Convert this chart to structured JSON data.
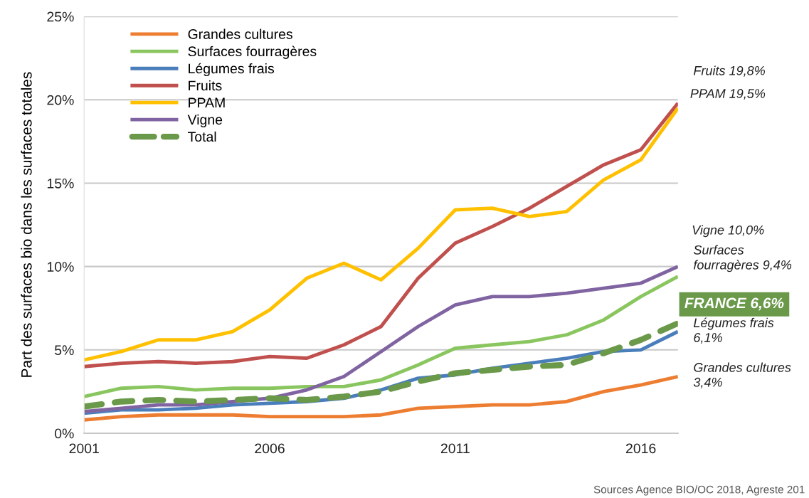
{
  "chart_data": {
    "type": "line",
    "ylabel": "Part des surfaces bio dans les surfaces totales",
    "x": [
      2001,
      2002,
      2003,
      2004,
      2005,
      2006,
      2007,
      2008,
      2009,
      2010,
      2011,
      2012,
      2013,
      2014,
      2015,
      2016,
      2017
    ],
    "xlim": [
      2001,
      2017
    ],
    "xticks": [
      2001,
      2006,
      2011,
      2016
    ],
    "ylim": [
      0,
      25
    ],
    "yticks": [
      {
        "value": 0,
        "label": "0%"
      },
      {
        "value": 5,
        "label": "5%"
      },
      {
        "value": 10,
        "label": "10%"
      },
      {
        "value": 15,
        "label": "15%"
      },
      {
        "value": 20,
        "label": "20%"
      },
      {
        "value": 25,
        "label": "25%"
      }
    ],
    "grid": "y",
    "legend": "top left",
    "marker": "none",
    "series": [
      {
        "name": "Grandes cultures",
        "color": "#ed7d31",
        "values": [
          0.8,
          1.0,
          1.1,
          1.1,
          1.1,
          1.0,
          1.0,
          1.0,
          1.1,
          1.5,
          1.6,
          1.7,
          1.7,
          1.9,
          2.5,
          2.9,
          3.4
        ]
      },
      {
        "name": "Surfaces fourragères",
        "color": "#8ac65f",
        "values": [
          2.2,
          2.7,
          2.8,
          2.6,
          2.7,
          2.7,
          2.8,
          2.8,
          3.2,
          4.1,
          5.1,
          5.3,
          5.5,
          5.9,
          6.8,
          8.2,
          9.4
        ]
      },
      {
        "name": "Légumes frais",
        "color": "#4a7ebb",
        "values": [
          1.2,
          1.4,
          1.4,
          1.5,
          1.7,
          1.8,
          1.9,
          2.1,
          2.6,
          3.3,
          3.5,
          3.9,
          4.2,
          4.5,
          4.9,
          5.0,
          6.1
        ]
      },
      {
        "name": "Fruits",
        "color": "#c0504d",
        "values": [
          4.0,
          4.2,
          4.3,
          4.2,
          4.3,
          4.6,
          4.5,
          5.3,
          6.4,
          9.3,
          11.4,
          12.4,
          13.5,
          14.8,
          16.1,
          17.0,
          19.8
        ]
      },
      {
        "name": "PPAM",
        "color": "#ffc000",
        "values": [
          4.4,
          4.9,
          5.6,
          5.6,
          6.1,
          7.4,
          9.3,
          10.2,
          9.2,
          11.1,
          13.4,
          13.5,
          13.0,
          13.3,
          15.2,
          16.4,
          19.5
        ]
      },
      {
        "name": "Vigne",
        "color": "#8064a2",
        "values": [
          1.3,
          1.5,
          1.7,
          1.7,
          1.9,
          2.1,
          2.6,
          3.4,
          4.9,
          6.4,
          7.7,
          8.2,
          8.2,
          8.4,
          8.7,
          9.0,
          10.0
        ]
      },
      {
        "name": "Total",
        "color": "#6a994a",
        "line_style": "dashed",
        "values": [
          1.6,
          1.9,
          2.0,
          1.9,
          2.0,
          2.1,
          2.0,
          2.2,
          2.5,
          3.1,
          3.6,
          3.8,
          4.0,
          4.1,
          4.8,
          5.6,
          6.6
        ]
      }
    ],
    "annotations": [
      "Fruits 19,8%",
      "PPAM 19,5%",
      "Vigne 10,0%",
      "Surfaces\nfourragères 9,4%",
      "FRANCE 6,6%",
      "Légumes frais\n6,1%",
      "Grandes cultures\n3,4%",
      "Sources Agence BIO/OC 2018, Agreste 201"
    ]
  }
}
